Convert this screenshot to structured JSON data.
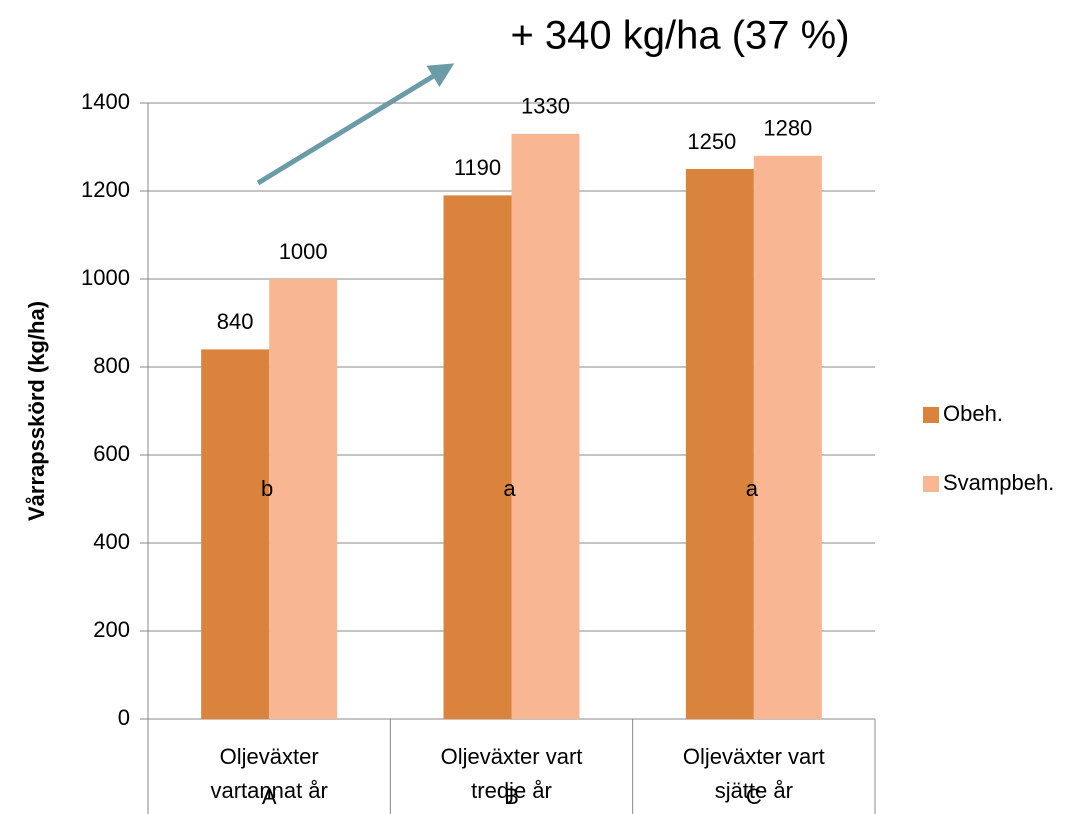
{
  "chart_data": {
    "type": "bar",
    "annotation": "+ 340 kg/ha (37 %)",
    "y_label": "Vårrapsskörd (kg/ha)",
    "categories": [
      "Oljeväxter vartannat år",
      "Oljeväxter vart tredje år",
      "Oljeväxter vart sjätte år"
    ],
    "groups": [
      "A",
      "B",
      "C"
    ],
    "significance": [
      "b",
      "a",
      "a"
    ],
    "series": [
      {
        "name": "Obeh.",
        "color": "#d9833d",
        "values": [
          840,
          1190,
          1250
        ]
      },
      {
        "name": "Svampbeh.",
        "color": "#f8b692",
        "values": [
          1000,
          1330,
          1280
        ]
      }
    ],
    "ylim": [
      0,
      1400
    ],
    "yticks": [
      0,
      200,
      400,
      600,
      800,
      1000,
      1200,
      1400
    ],
    "grid": true,
    "legend": "right"
  }
}
